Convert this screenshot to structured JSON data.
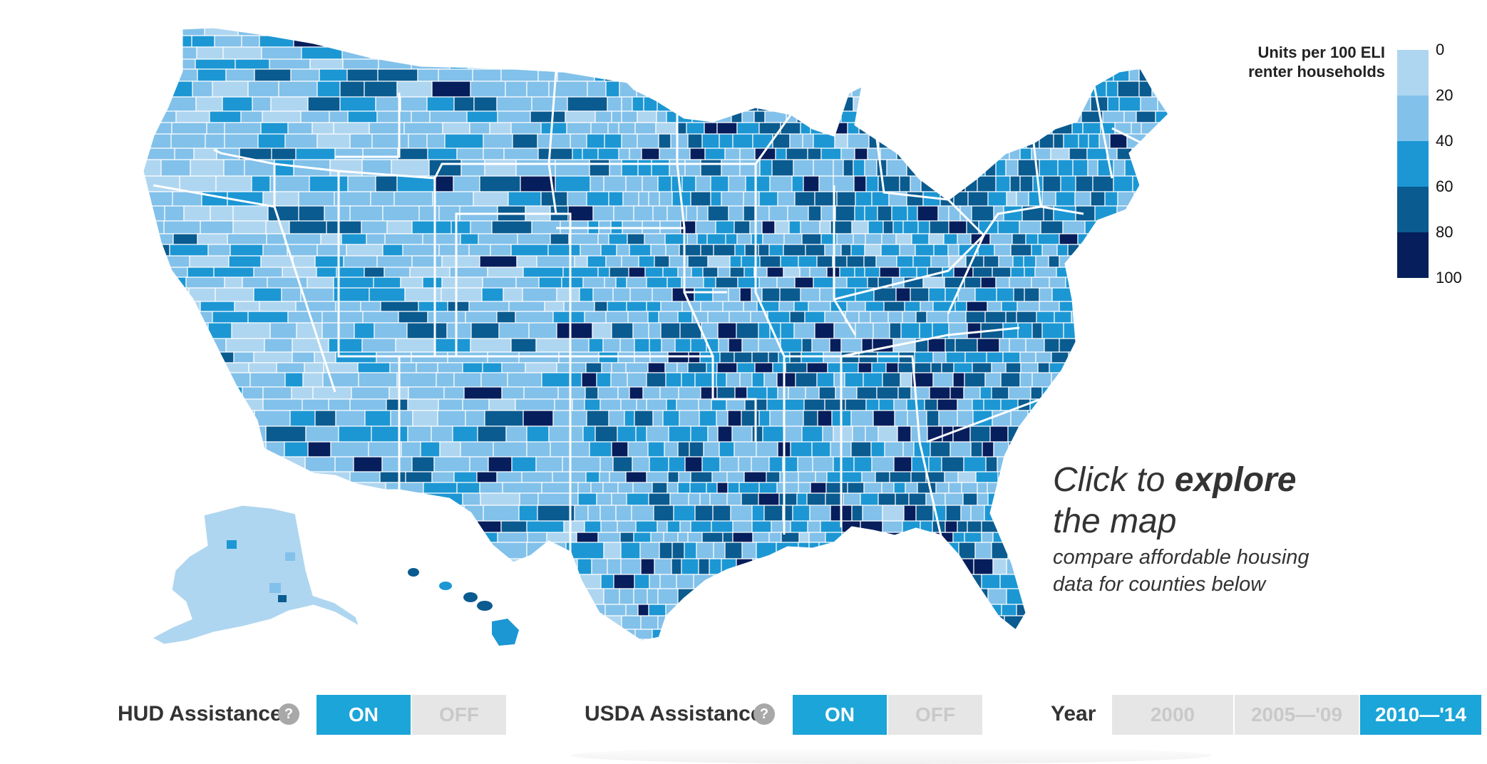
{
  "legend": {
    "title": "Units per 100 ELI renter households",
    "ticks": [
      "0",
      "20",
      "40",
      "60",
      "80",
      "100"
    ],
    "colors": [
      "#afd6f0",
      "#82c1ea",
      "#1c97d4",
      "#0a5b90",
      "#061e5c"
    ]
  },
  "prompt": {
    "line1_a": "Click to ",
    "line1_b": "explore",
    "line2": "the map",
    "sub1": "compare affordable housing",
    "sub2": "data for counties below"
  },
  "controls": {
    "hud": {
      "label": "HUD Assistance",
      "help": "?",
      "on": "ON",
      "off": "OFF",
      "selected": "ON"
    },
    "usda": {
      "label": "USDA Assistance",
      "help": "?",
      "on": "ON",
      "off": "OFF",
      "selected": "ON"
    },
    "year": {
      "label": "Year",
      "options": [
        "2000",
        "2005—'09",
        "2010—'14"
      ],
      "selected": "2010—'14"
    }
  },
  "map": {
    "base_color": "#82c1ea",
    "accent_color": "#1ba5d8"
  }
}
